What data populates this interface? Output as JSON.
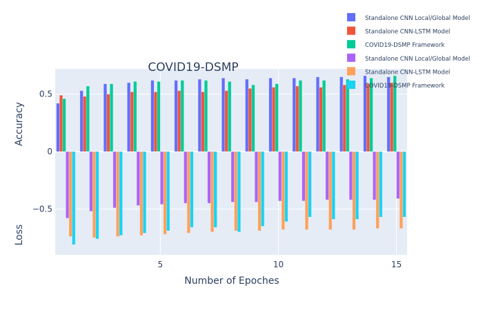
{
  "chart_data": {
    "type": "bar",
    "title": "COVID19-DSMP",
    "xlabel": "Number of Epoches",
    "ylabel_top": "Accuracy",
    "ylabel_bottom": "Loss",
    "xlim": [
      0.55,
      15.45
    ],
    "ylim": [
      -0.9,
      0.72
    ],
    "x_ticks": [
      5,
      10,
      15
    ],
    "y_ticks": [
      0.5,
      0,
      -0.5
    ],
    "y_tick_labels": [
      "0.5",
      "0",
      "−0.5"
    ],
    "x_tick_labels": [
      "5",
      "10",
      "15"
    ],
    "epochs": [
      1,
      2,
      3,
      4,
      5,
      6,
      7,
      8,
      9,
      10,
      11,
      12,
      13,
      14,
      15
    ],
    "series": [
      {
        "name": "Standalone CNN Local/Global Model",
        "color": "#636efa",
        "values": [
          0.42,
          0.53,
          0.59,
          0.6,
          0.62,
          0.62,
          0.63,
          0.64,
          0.63,
          0.64,
          0.64,
          0.65,
          0.65,
          0.66,
          0.65
        ]
      },
      {
        "name": "Standalone CNN-LSTM Model",
        "color": "#ef553b",
        "values": [
          0.49,
          0.48,
          0.5,
          0.52,
          0.52,
          0.53,
          0.52,
          0.53,
          0.55,
          0.56,
          0.57,
          0.56,
          0.58,
          0.59,
          0.6
        ]
      },
      {
        "name": "COVID19-DSMP Framework",
        "color": "#00cc96",
        "values": [
          0.46,
          0.57,
          0.59,
          0.61,
          0.61,
          0.62,
          0.62,
          0.61,
          0.58,
          0.59,
          0.62,
          0.62,
          0.63,
          0.64,
          0.66
        ]
      },
      {
        "name": "Standalone CNN Local/Global Model",
        "color": "#ab63fa",
        "values": [
          -0.58,
          -0.52,
          -0.49,
          -0.47,
          -0.46,
          -0.45,
          -0.45,
          -0.44,
          -0.44,
          -0.43,
          -0.43,
          -0.42,
          -0.42,
          -0.42,
          -0.41
        ]
      },
      {
        "name": "Standalone CNN-LSTM Model",
        "color": "#ffa15a",
        "values": [
          -0.74,
          -0.75,
          -0.74,
          -0.73,
          -0.72,
          -0.71,
          -0.7,
          -0.69,
          -0.69,
          -0.68,
          -0.68,
          -0.68,
          -0.68,
          -0.67,
          -0.67
        ]
      },
      {
        "name": "COVID19-DSMP Framework",
        "color": "#19d3f3",
        "values": [
          -0.81,
          -0.76,
          -0.73,
          -0.71,
          -0.69,
          -0.66,
          -0.66,
          -0.7,
          -0.65,
          -0.61,
          -0.57,
          -0.59,
          -0.59,
          -0.57,
          -0.57
        ]
      }
    ],
    "legend_position": "top-right",
    "grid": true
  }
}
